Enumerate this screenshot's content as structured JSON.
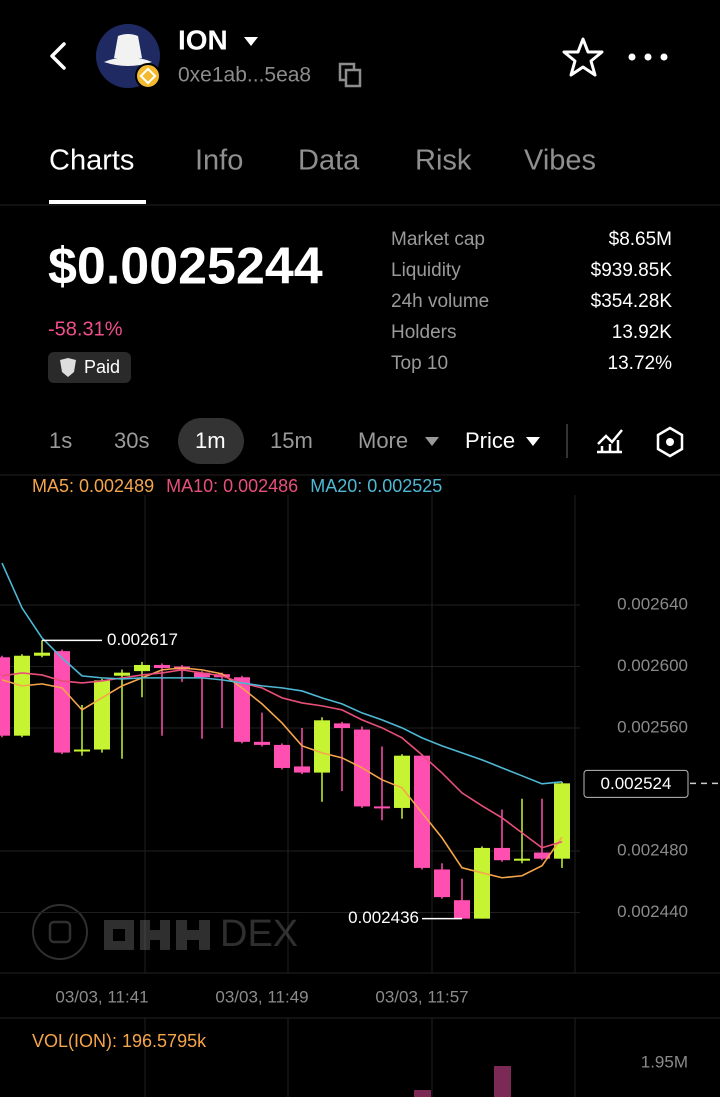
{
  "header": {
    "name": "ION",
    "address": "0xe1ab...5ea8"
  },
  "tabs": [
    "Charts",
    "Info",
    "Data",
    "Risk",
    "Vibes"
  ],
  "price": "$0.0025244",
  "change": "-58.31%",
  "badge": "Paid",
  "stats": [
    {
      "label": "Market cap",
      "value": "$8.65M"
    },
    {
      "label": "Liquidity",
      "value": "$939.85K"
    },
    {
      "label": "24h volume",
      "value": "$354.28K"
    },
    {
      "label": "Holders",
      "value": "13.92K"
    },
    {
      "label": "Top 10",
      "value": "13.72%"
    }
  ],
  "intervals": [
    "1s",
    "30s",
    "1m",
    "15m",
    "More"
  ],
  "price_mode": "Price",
  "chart": {
    "type": "candlestick",
    "up_color": "#c6f432",
    "down_color": "#ff4fb0",
    "ylim": [
      0.0024,
      0.00272
    ],
    "yticks": [
      {
        "value": 0.00264,
        "label": "0.002640"
      },
      {
        "value": 0.0026,
        "label": "0.002600"
      },
      {
        "value": 0.00256,
        "label": "0.002560"
      },
      {
        "value": 0.00248,
        "label": "0.002480"
      },
      {
        "value": 0.00244,
        "label": "0.002440"
      }
    ],
    "grid": true,
    "categories": [
      null,
      null,
      null,
      null,
      null,
      "03/03, 11:41",
      null,
      null,
      null,
      null,
      null,
      null,
      null,
      "03/03, 11:49",
      null,
      null,
      null,
      null,
      null,
      null,
      null,
      "03/03, 11:57",
      null,
      null,
      null,
      null,
      null,
      null,
      null
    ],
    "candles": {
      "open": [
        0.002606,
        0.002555,
        0.002607,
        0.00261,
        0.002545,
        0.002546,
        0.002594,
        0.002597,
        0.002601,
        0.0026,
        0.002596,
        0.002595,
        0.002593,
        0.002551,
        0.002549,
        0.002535,
        0.002531,
        0.002563,
        0.002559,
        0.002509,
        0.002508,
        0.002542,
        0.002468,
        0.002448,
        0.002436,
        0.002482,
        0.002474,
        0.002479,
        0.002475
      ],
      "close": [
        0.002555,
        0.002607,
        0.002609,
        0.002544,
        0.002546,
        0.002591,
        0.002596,
        0.002601,
        0.002599,
        0.002598,
        0.002593,
        0.002593,
        0.002551,
        0.002549,
        0.002534,
        0.002531,
        0.002565,
        0.00256,
        0.002509,
        0.002508,
        0.002542,
        0.002469,
        0.00245,
        0.002436,
        0.002482,
        0.002474,
        0.002475,
        0.002475,
        0.002524
      ],
      "high": [
        0.002607,
        0.002608,
        0.002617,
        0.002611,
        0.002575,
        0.002592,
        0.002598,
        0.002603,
        0.002602,
        0.002601,
        0.002597,
        0.002596,
        0.002594,
        0.00257,
        0.00255,
        0.00256,
        0.002567,
        0.002564,
        0.002561,
        0.002548,
        0.002543,
        0.002543,
        0.002472,
        0.002462,
        0.002483,
        0.002507,
        0.002514,
        0.002514,
        0.002525
      ],
      "low": [
        0.002554,
        0.002554,
        0.002606,
        0.002543,
        0.002542,
        0.002544,
        0.00254,
        0.00258,
        0.002555,
        0.00259,
        0.002553,
        0.00256,
        0.00255,
        0.002548,
        0.002533,
        0.00253,
        0.002512,
        0.002519,
        0.002508,
        0.0025,
        0.002501,
        0.002468,
        0.002449,
        0.002436,
        0.002436,
        0.002473,
        0.002472,
        0.002474,
        0.002469
      ]
    },
    "series": [
      {
        "name": "MA5: 0.002489",
        "color": "#f5a54a",
        "values": [
          0.0025913,
          0.0025874,
          0.0025887,
          0.0025861,
          0.0025718,
          0.0025796,
          0.0025874,
          0.0025926,
          0.0025978,
          0.0025991,
          0.0025978,
          0.0025952,
          0.0025861,
          0.0025757,
          0.0025633,
          0.0025484,
          0.0025438,
          0.0025406,
          0.0025341,
          0.0025263,
          0.0025211,
          0.0025048,
          0.0024886,
          0.0024691,
          0.0024658,
          0.0024626,
          0.0024639,
          0.0024704,
          0.002489
        ]
      },
      {
        "name": "MA10: 0.002486",
        "color": "#e8507a",
        "values": [
          0.0025939,
          0.0025958,
          0.0025945,
          0.0025906,
          0.0025893,
          0.0025906,
          0.0025926,
          0.0025945,
          0.0025958,
          0.0025978,
          0.0025958,
          0.0025939,
          0.0025893,
          0.0025861,
          0.0025796,
          0.0025763,
          0.0025744,
          0.0025718,
          0.0025653,
          0.0025601,
          0.0025536,
          0.0025425,
          0.0025308,
          0.0025178,
          0.0025094,
          0.0025016,
          0.0024918,
          0.0024821,
          0.002486
        ]
      },
      {
        "name": "MA20: 0.002525",
        "color": "#4fb8d4",
        "values": [
          0.0026673,
          0.0026381,
          0.0026186,
          0.0026056,
          0.0025939,
          0.0025926,
          0.0025919,
          0.0025926,
          0.0025926,
          0.0025926,
          0.0025926,
          0.0025913,
          0.0025893,
          0.0025874,
          0.0025861,
          0.0025841,
          0.0025796,
          0.0025757,
          0.0025698,
          0.0025653,
          0.0025601,
          0.0025536,
          0.0025484,
          0.0025438,
          0.0025393,
          0.0025341,
          0.0025289,
          0.0025237,
          0.002525
        ]
      }
    ],
    "high_label": 0.002617,
    "low_label": 0.002436,
    "current_price": 0.002524,
    "watermark": "DEX"
  },
  "volume": {
    "title": "VOL(ION): 196.5795k",
    "max_label": "1.95M"
  }
}
